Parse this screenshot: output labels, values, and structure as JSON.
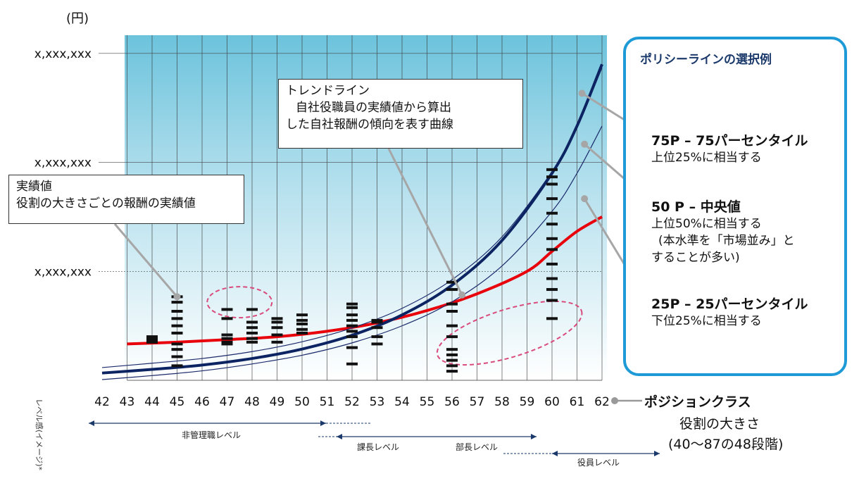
{
  "chart_data": {
    "type": "line",
    "yunit": "(円)",
    "ytick_labels": [
      "x,xxx,xxx",
      "x,xxx,xxx",
      "x,xxx,xxx"
    ],
    "x": [
      42,
      43,
      44,
      45,
      46,
      47,
      48,
      49,
      50,
      51,
      52,
      53,
      54,
      55,
      56,
      57,
      58,
      59,
      60,
      61,
      62
    ],
    "xlim": [
      42,
      62
    ],
    "grid": "vertical",
    "series": [
      {
        "role": "trend",
        "color": "#e8000b",
        "x": [
          43,
          45,
          47,
          49,
          51,
          53,
          55,
          57,
          59,
          60,
          61,
          62
        ],
        "y": [
          1.0,
          1.05,
          1.12,
          1.2,
          1.35,
          1.58,
          1.92,
          2.38,
          3.0,
          3.55,
          4.1,
          4.5
        ]
      },
      {
        "role": "p75",
        "color": "#1b2a6b",
        "x": [
          42,
          44,
          46,
          48,
          50,
          52,
          54,
          56,
          58,
          60,
          61,
          62
        ],
        "y": [
          0.35,
          0.47,
          0.6,
          0.79,
          1.06,
          1.44,
          1.98,
          2.77,
          3.95,
          5.75,
          7.0,
          8.6
        ]
      },
      {
        "role": "p50",
        "color": "#0d2463",
        "x": [
          42,
          44,
          46,
          48,
          50,
          52,
          54,
          56,
          58,
          60,
          61,
          62
        ],
        "y": [
          0.2,
          0.3,
          0.42,
          0.6,
          0.86,
          1.24,
          1.8,
          2.62,
          3.85,
          5.7,
          7.0,
          8.7
        ]
      },
      {
        "role": "p25",
        "color": "#1b2a6b",
        "x": [
          42,
          44,
          46,
          48,
          50,
          52,
          54,
          56,
          58,
          60,
          61,
          62
        ],
        "y": [
          0.02,
          0.13,
          0.26,
          0.45,
          0.69,
          1.03,
          1.5,
          2.16,
          3.15,
          4.65,
          5.7,
          7.0
        ]
      }
    ],
    "actuals": [
      {
        "x": 44,
        "y": [
          1.05,
          1.1,
          1.15,
          1.2
        ]
      },
      {
        "x": 45,
        "y": [
          0.4,
          0.65,
          0.85,
          1.0,
          1.3,
          1.5,
          1.7,
          1.9,
          2.15,
          2.3
        ]
      },
      {
        "x": 47,
        "y": [
          1.0,
          1.05,
          1.15,
          1.25,
          1.7,
          1.95
        ]
      },
      {
        "x": 48,
        "y": [
          1.05,
          1.15,
          1.3,
          1.45,
          1.6,
          1.95
        ]
      },
      {
        "x": 49,
        "y": [
          1.05,
          1.25,
          1.45,
          1.6,
          1.7
        ]
      },
      {
        "x": 50,
        "y": [
          1.3,
          1.4,
          1.55,
          1.65,
          1.8
        ]
      },
      {
        "x": 52,
        "y": [
          0.45,
          0.9,
          1.2,
          1.35,
          1.5,
          1.65,
          1.8,
          2.0,
          2.1
        ]
      },
      {
        "x": 53,
        "y": [
          1.0,
          1.2,
          1.45,
          1.6,
          1.65
        ]
      },
      {
        "x": 56,
        "y": [
          0.25,
          0.4,
          0.55,
          0.7,
          0.85,
          1.2,
          1.5,
          1.9,
          2.1,
          2.5,
          2.7
        ]
      },
      {
        "x": 60,
        "y": [
          1.7,
          2.2,
          2.5,
          2.8,
          3.2,
          3.6,
          3.9,
          4.3,
          4.6,
          5.0,
          5.4,
          5.6,
          5.8
        ]
      }
    ],
    "ylim": [
      0,
      9.5
    ],
    "yticks": [
      3,
      6,
      9
    ]
  },
  "position_class": {
    "title": "ポジションクラス",
    "subtitle": "役割の大きさ",
    "range": "(40〜87の48段階)"
  },
  "level_axis": {
    "label": "レベル感(イメージ)*",
    "bands": [
      {
        "label": "非管理職レベル",
        "from": 42,
        "to": 51,
        "dash_to": 53
      },
      {
        "label": "課長レベル",
        "from": 51.5,
        "to": 59.5,
        "dash_from": 49.5
      },
      {
        "label": "部長レベル",
        "from": 51.5,
        "to": 59.5
      },
      {
        "label": "役員レベル",
        "from": 60,
        "to": 64.5,
        "dash_from": 57.5
      }
    ]
  },
  "callouts": {
    "actual": {
      "title": "実績値",
      "body": "役割の大きさごとの報酬の実績値"
    },
    "trend": {
      "title": "トレンドライン",
      "line1": "自社役職員の実績値から算出",
      "line2": "した自社報酬の傾向を表す曲線"
    }
  },
  "policy": {
    "title": "ポリシーラインの選択例",
    "p75_head": "75P – 75パーセンタイル",
    "p75_body": "上位25%に相当する",
    "p50_head": "50 P – 中央値",
    "p50_body": "上位50%に相当する",
    "p50_note1": "(本水準を「市場並み」と",
    "p50_note2": "することが多い)",
    "p25_head": "25P – 25パーセンタイル",
    "p25_body": "下位25%に相当する"
  },
  "colors": {
    "trend": "#e8000b",
    "percentile": "#1b2a6b",
    "panel_border": "#1e9ad6",
    "highlight_ellipse": "#d94b7c"
  }
}
